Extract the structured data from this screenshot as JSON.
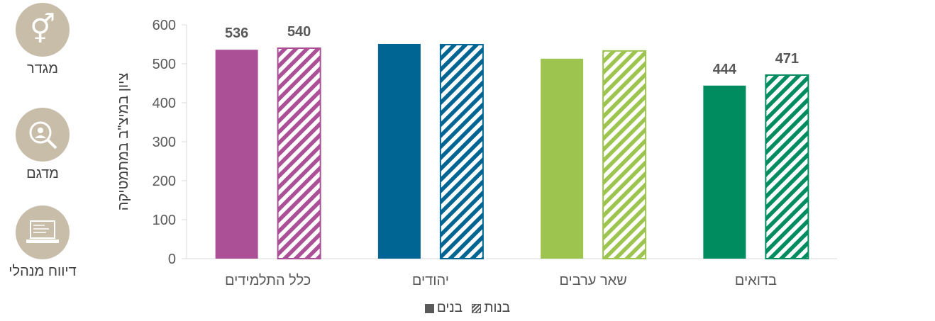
{
  "sidebar": {
    "items": [
      {
        "label": "מגדר",
        "icon": "gender-icon"
      },
      {
        "label": "מדגם",
        "icon": "sample-magnifier-icon"
      },
      {
        "label": "דיווח מנהלי",
        "icon": "laptop-report-icon"
      }
    ]
  },
  "legend": {
    "girls_label": "בנות",
    "boys_label": "בנים"
  },
  "colors": {
    "all_students": "#ab4f97",
    "jews": "#006593",
    "other_arabs": "#9dc44f",
    "bedouins": "#008c5e",
    "axis_text": "#595959"
  },
  "chart_data": {
    "type": "bar",
    "title": "",
    "ylabel": "ציון במיצ\"ב במתמטיקה",
    "xlabel": "",
    "ylim": [
      0,
      600
    ],
    "yticks": [
      0,
      100,
      200,
      300,
      400,
      500,
      600
    ],
    "categories": [
      "כלל התלמידים",
      "יהודים",
      "שאר ערבים",
      "בדואים"
    ],
    "series": [
      {
        "name": "בנים",
        "pattern": "solid",
        "values": [
          536,
          551,
          513,
          444
        ],
        "labels": [
          "536",
          "",
          "",
          "444"
        ]
      },
      {
        "name": "בנות",
        "pattern": "hatched",
        "values": [
          540,
          549,
          533,
          471
        ],
        "labels": [
          "540",
          "",
          "",
          "471"
        ]
      }
    ],
    "grid": false,
    "legend_position": "bottom"
  }
}
